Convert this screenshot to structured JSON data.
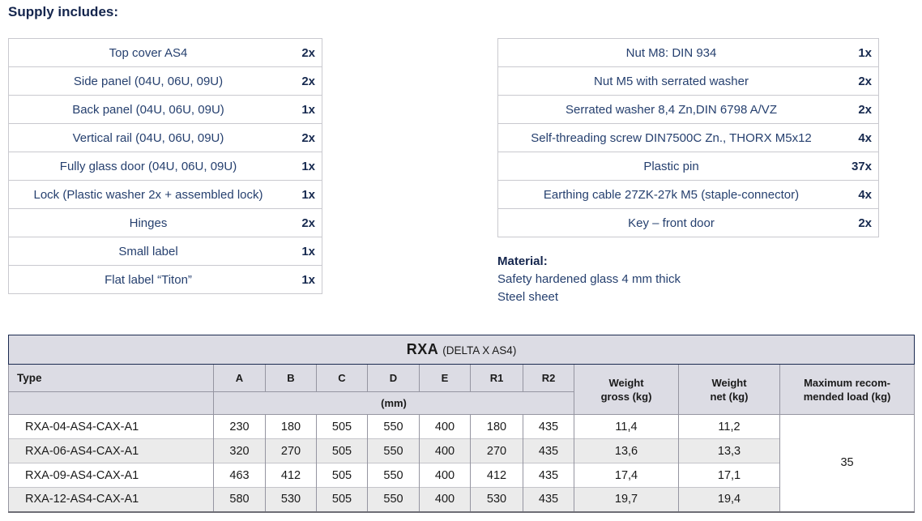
{
  "page": {
    "supply_heading": "Supply includes:"
  },
  "material": {
    "heading": "Material:",
    "line1": "Safety hardened glass 4 mm thick",
    "line2": "Steel sheet"
  },
  "supply_left": [
    {
      "item": "Top cover AS4",
      "qty": "2x"
    },
    {
      "item": "Side panel (04U, 06U, 09U)",
      "qty": "2x"
    },
    {
      "item": "Back panel (04U, 06U, 09U)",
      "qty": "1x"
    },
    {
      "item": "Vertical rail (04U, 06U, 09U)",
      "qty": "2x"
    },
    {
      "item": "Fully glass door (04U, 06U, 09U)",
      "qty": "1x"
    },
    {
      "item": "Lock (Plastic washer 2x + assembled lock)",
      "qty": "1x"
    },
    {
      "item": "Hinges",
      "qty": "2x"
    },
    {
      "item": "Small label",
      "qty": "1x"
    },
    {
      "item": "Flat label “Titon”",
      "qty": "1x"
    }
  ],
  "supply_right": [
    {
      "item": "Nut M8: DIN 934",
      "qty": "1x"
    },
    {
      "item": "Nut M5 with serrated washer",
      "qty": "2x"
    },
    {
      "item": "Serrated washer 8,4 Zn,DIN 6798 A/VZ",
      "qty": "2x"
    },
    {
      "item": "Self-threading screw DIN7500C Zn., THORX M5x12",
      "qty": "4x"
    },
    {
      "item": "Plastic pin",
      "qty": "37x"
    },
    {
      "item": "Earthing cable 27ZK-27k M5 (staple-connector)",
      "qty": "4x"
    },
    {
      "item": "Key – front door",
      "qty": "2x"
    }
  ],
  "spec_table": {
    "title": "RXA",
    "subtitle": "(DELTA X AS4)",
    "columns": [
      "Type",
      "A",
      "B",
      "C",
      "D",
      "E",
      "R1",
      "R2"
    ],
    "unit_label": "(mm)",
    "weight_gross_label": "Weight\ngross (kg)",
    "weight_net_label": "Weight\nnet (kg)",
    "max_load_label": "Maximum recom-\nmended load (kg)",
    "rows": [
      {
        "type": "RXA-04-AS4-CAX-A1",
        "dims": [
          "230",
          "180",
          "505",
          "550",
          "400",
          "180",
          "435"
        ],
        "weight_gross": "11,4",
        "weight_net": "11,2"
      },
      {
        "type": "RXA-06-AS4-CAX-A1",
        "dims": [
          "320",
          "270",
          "505",
          "550",
          "400",
          "270",
          "435"
        ],
        "weight_gross": "13,6",
        "weight_net": "13,3"
      },
      {
        "type": "RXA-09-AS4-CAX-A1",
        "dims": [
          "463",
          "412",
          "505",
          "550",
          "400",
          "412",
          "435"
        ],
        "weight_gross": "17,4",
        "weight_net": "17,1"
      },
      {
        "type": "RXA-12-AS4-CAX-A1",
        "dims": [
          "580",
          "530",
          "505",
          "550",
          "400",
          "530",
          "435"
        ],
        "weight_gross": "19,7",
        "weight_net": "19,4"
      }
    ],
    "max_load": "35"
  },
  "colors": {
    "band_navy": "#1b2a50",
    "heading_navy": "#14254d",
    "item_navy": "#26406f",
    "header_lavender": "#dcdce4",
    "alt_row_gray": "#ebebeb"
  }
}
